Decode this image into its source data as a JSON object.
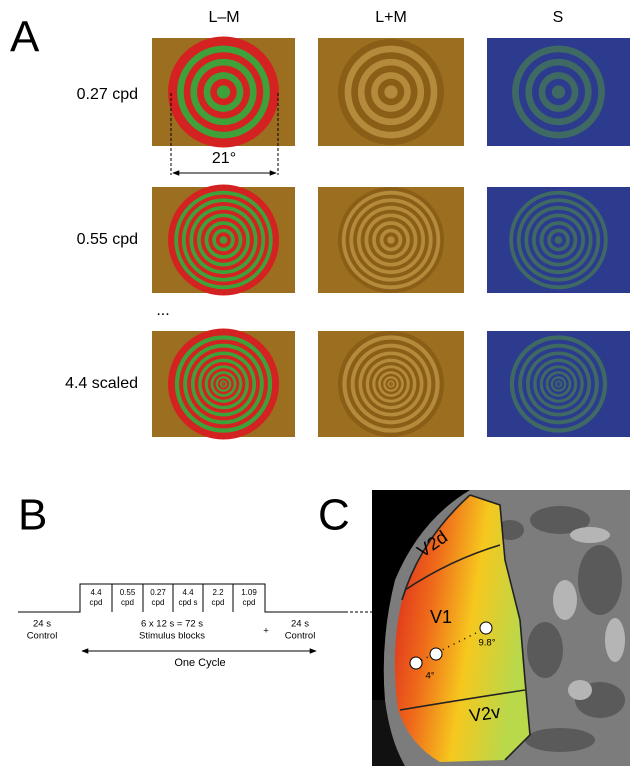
{
  "panels": {
    "A": {
      "label": "A",
      "columns": [
        "L–M",
        "L+M",
        "S"
      ],
      "rows": [
        "0.27 cpd",
        "0.55 cpd",
        "4.4 scaled"
      ],
      "ellipsis": "...",
      "extent": "21°"
    },
    "B": {
      "label": "B",
      "blocks": [
        [
          "4.4",
          "cpd"
        ],
        [
          "0.55",
          "cpd"
        ],
        [
          "0.27",
          "cpd"
        ],
        [
          "4.4",
          "cpd s"
        ],
        [
          "2.2",
          "cpd"
        ],
        [
          "1.09",
          "cpd"
        ]
      ],
      "control_left": [
        "24 s",
        "Control"
      ],
      "stimulus": [
        "6 x 12 s = 72 s",
        "Stimulus blocks"
      ],
      "plus": "+",
      "control_right": [
        "24 s",
        "Control"
      ],
      "cycle": "One Cycle"
    },
    "C": {
      "label": "C",
      "areas": [
        "V2d",
        "V1",
        "V2v"
      ],
      "eccentricities": [
        "4°",
        "9.8°"
      ]
    }
  }
}
